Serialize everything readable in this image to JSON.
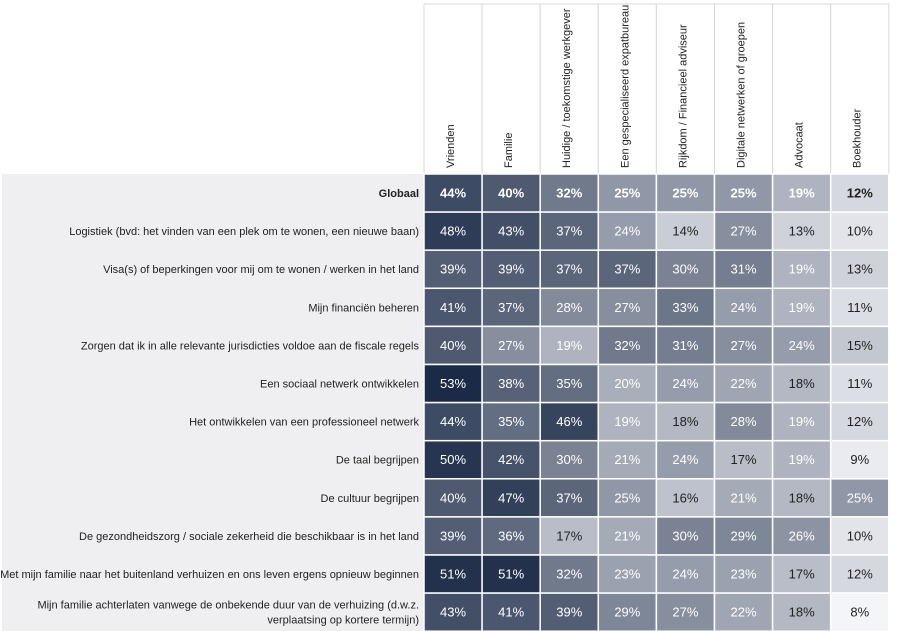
{
  "chart_data": {
    "type": "heatmap",
    "columns": [
      "Vrienden",
      "Familie",
      "Huidige / toekomstige werkgever",
      "Een gespecialiseerd expatbureau",
      "Rijkdom / Financieel adviseur",
      "Digitale netwerken of groepen",
      "Advocaat",
      "Boekhouder"
    ],
    "rows": [
      {
        "label": [
          "Globaal"
        ],
        "bold": true,
        "values": [
          44,
          40,
          32,
          25,
          25,
          25,
          19,
          12
        ]
      },
      {
        "label": [
          "Logistiek (bvd: het vinden van een plek om te wonen, een nieuwe baan)"
        ],
        "values": [
          48,
          43,
          37,
          24,
          14,
          27,
          13,
          10
        ]
      },
      {
        "label": [
          "Visa(s) of beperkingen voor mij om te wonen / werken in het land"
        ],
        "values": [
          39,
          39,
          37,
          37,
          30,
          31,
          19,
          13
        ]
      },
      {
        "label": [
          "Mijn financiën beheren"
        ],
        "values": [
          41,
          37,
          28,
          27,
          33,
          24,
          19,
          11
        ]
      },
      {
        "label": [
          "Zorgen dat ik in alle relevante jurisdicties voldoe aan de fiscale regels"
        ],
        "values": [
          40,
          27,
          19,
          32,
          31,
          27,
          24,
          15
        ]
      },
      {
        "label": [
          "Een sociaal netwerk ontwikkelen"
        ],
        "values": [
          53,
          38,
          35,
          20,
          24,
          22,
          18,
          11
        ]
      },
      {
        "label": [
          "Het ontwikkelen van een professioneel netwerk"
        ],
        "values": [
          44,
          35,
          46,
          19,
          18,
          28,
          19,
          12
        ]
      },
      {
        "label": [
          "De taal begrijpen"
        ],
        "values": [
          50,
          42,
          30,
          21,
          24,
          17,
          19,
          9
        ]
      },
      {
        "label": [
          "De cultuur begrijpen"
        ],
        "values": [
          40,
          47,
          37,
          25,
          16,
          21,
          18,
          25
        ]
      },
      {
        "label": [
          "De gezondheidszorg / sociale zekerheid die beschikbaar is in het land"
        ],
        "values": [
          39,
          36,
          17,
          21,
          30,
          29,
          26,
          10
        ]
      },
      {
        "label": [
          "Met mijn familie naar het buitenland verhuizen en ons leven ergens opnieuw beginnen"
        ],
        "values": [
          51,
          51,
          32,
          23,
          24,
          23,
          17,
          12
        ]
      },
      {
        "label": [
          "Mijn familie achterlaten vanwege de onbekende duur van de verhuizing (d.w.z.",
          "verplaatsing op kortere termijn)"
        ],
        "values": [
          43,
          41,
          39,
          29,
          27,
          22,
          18,
          8
        ]
      }
    ],
    "value_suffix": "%",
    "colors": {
      "dark": "#1b2a47",
      "light": "#f4f5f8",
      "row_label_background": "#efeff1",
      "grid": "#ffffff"
    }
  }
}
